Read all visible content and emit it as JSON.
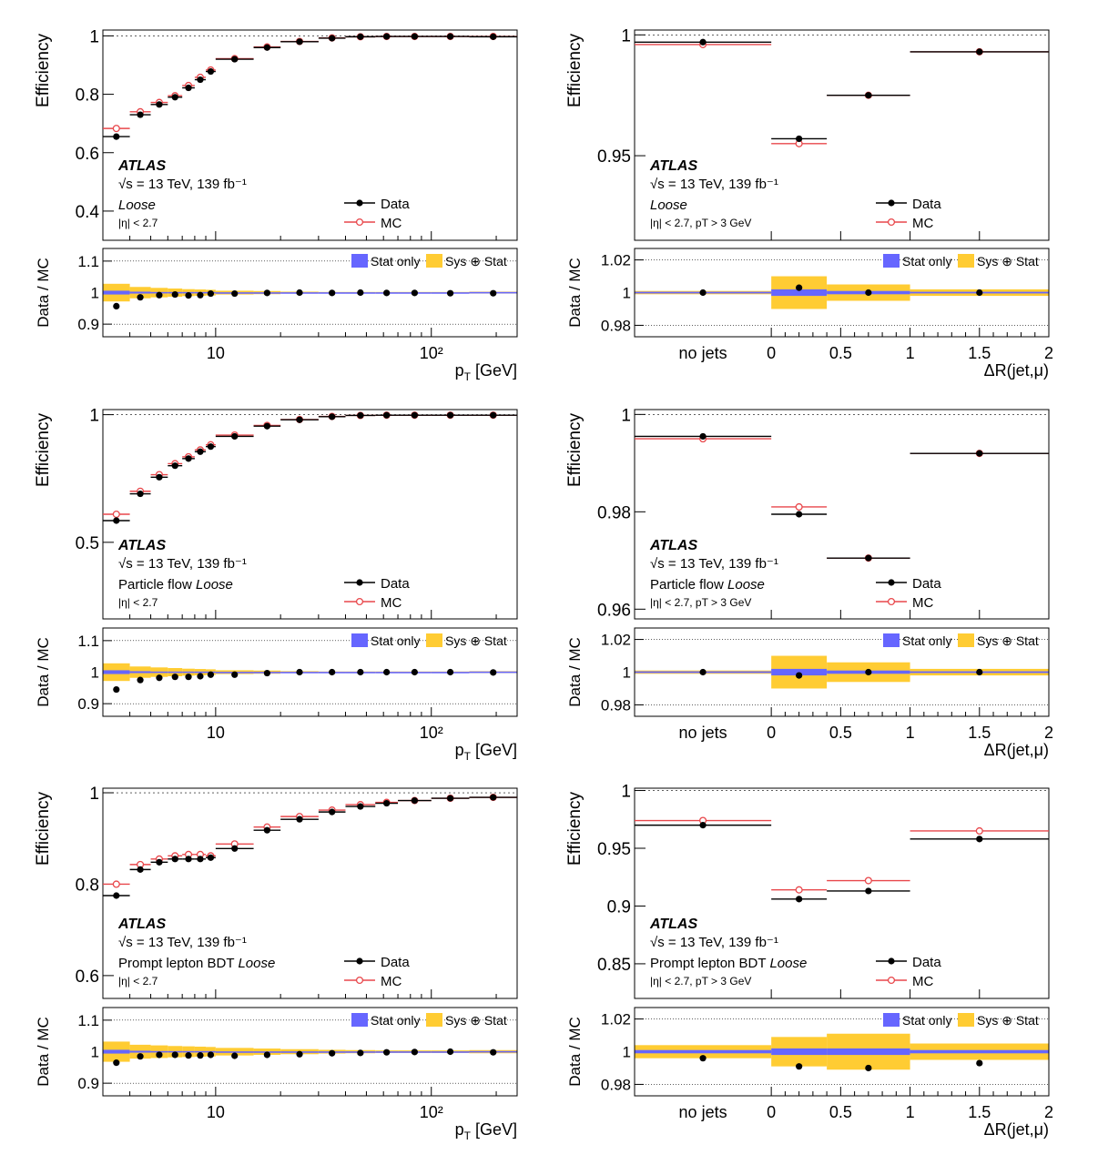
{
  "legend": {
    "data": "Data",
    "mc": "MC",
    "stat_only": "Stat only",
    "sys_stat": "Sys ⊕ Stat"
  },
  "atlas": {
    "label": "ATLAS",
    "energy": "√s = 13 TeV, 139 fb⁻¹"
  },
  "axes": {
    "efficiency": "Efficiency",
    "ratio": "Data / MC",
    "pt_label": "pT [GeV]",
    "pt_sub": "T",
    "dr_label": "ΔR(jet,μ)",
    "no_jets": "no jets",
    "pt_ticks": [
      {
        "v": 10,
        "label": "10"
      },
      {
        "v": 100,
        "label": "10²"
      }
    ],
    "dr_ticks": [
      "0",
      "0.5",
      "1",
      "1.5",
      "2"
    ]
  },
  "colors": {
    "data": "#000000",
    "mc": "#e8474b",
    "stat": "#6666ff",
    "sys": "#ffcc33"
  },
  "chart_data": [
    {
      "type": "scatter",
      "row": 0,
      "var": "pt",
      "xscale": "log",
      "xlim": [
        3,
        250
      ],
      "ylim": [
        0.3,
        1.02
      ],
      "yticks": [
        0.4,
        0.6,
        0.8,
        1
      ],
      "ratio_ylim": [
        0.86,
        1.14
      ],
      "ratio_yticks": [
        0.9,
        1,
        1.1
      ],
      "selection": "Loose",
      "selection_prefix": "",
      "cut": "|η| < 2.7",
      "bins": [
        [
          3,
          4
        ],
        [
          4,
          5
        ],
        [
          5,
          6
        ],
        [
          6,
          7
        ],
        [
          7,
          8
        ],
        [
          8,
          9
        ],
        [
          9,
          10
        ],
        [
          10,
          15
        ],
        [
          15,
          20
        ],
        [
          20,
          30
        ],
        [
          30,
          40
        ],
        [
          40,
          55
        ],
        [
          55,
          70
        ],
        [
          70,
          100
        ],
        [
          100,
          150
        ],
        [
          150,
          300
        ]
      ],
      "data": [
        0.655,
        0.73,
        0.765,
        0.79,
        0.822,
        0.85,
        0.878,
        0.92,
        0.96,
        0.98,
        0.992,
        0.997,
        0.998,
        0.998,
        0.998,
        0.997
      ],
      "mc": [
        0.683,
        0.74,
        0.772,
        0.795,
        0.83,
        0.858,
        0.883,
        0.922,
        0.962,
        0.981,
        0.993,
        0.997,
        0.998,
        0.998,
        0.998,
        0.998
      ],
      "ratio": [
        0.957,
        0.985,
        0.992,
        0.994,
        0.991,
        0.992,
        0.997,
        0.997,
        0.999,
        1.0,
        0.999,
        1.0,
        0.999,
        0.999,
        0.998,
        0.998
      ],
      "stat": [
        0.006,
        0.003,
        0.002,
        0.002,
        0.002,
        0.002,
        0.002,
        0.001,
        0.001,
        0.001,
        0.001,
        0.001,
        0.001,
        0.001,
        0.001,
        0.002
      ],
      "sys": [
        0.028,
        0.018,
        0.015,
        0.013,
        0.011,
        0.01,
        0.009,
        0.006,
        0.005,
        0.003,
        0.002,
        0.002,
        0.002,
        0.002,
        0.002,
        0.003
      ]
    },
    {
      "type": "scatter",
      "row": 0,
      "var": "dr",
      "xlim": [
        0,
        2
      ],
      "ylim": [
        0.915,
        1.002
      ],
      "yticks": [
        0.95,
        1
      ],
      "ratio_ylim": [
        0.973,
        1.027
      ],
      "ratio_yticks": [
        0.98,
        1,
        1.02
      ],
      "selection": "Loose",
      "selection_prefix": "",
      "cut": "|η| < 2.7, pT > 3 GeV",
      "bins": [
        [
          "nojets"
        ],
        [
          0,
          0.4
        ],
        [
          0.4,
          1
        ],
        [
          1,
          2
        ]
      ],
      "data": [
        0.997,
        0.957,
        0.975,
        0.993
      ],
      "mc": [
        0.996,
        0.955,
        0.975,
        0.993
      ],
      "ratio": [
        1.0,
        1.003,
        1.0,
        1.0
      ],
      "stat": [
        0.0005,
        0.002,
        0.001,
        0.0005
      ],
      "sys": [
        0.001,
        0.01,
        0.005,
        0.002
      ]
    },
    {
      "type": "scatter",
      "row": 1,
      "var": "pt",
      "xscale": "log",
      "xlim": [
        3,
        250
      ],
      "ylim": [
        0.2,
        1.02
      ],
      "yticks": [
        0.5,
        1
      ],
      "ratio_ylim": [
        0.86,
        1.14
      ],
      "ratio_yticks": [
        0.9,
        1,
        1.1
      ],
      "selection": "Loose",
      "selection_prefix": "Particle flow ",
      "cut": "|η| < 2.7",
      "bins": [
        [
          3,
          4
        ],
        [
          4,
          5
        ],
        [
          5,
          6
        ],
        [
          6,
          7
        ],
        [
          7,
          8
        ],
        [
          8,
          9
        ],
        [
          9,
          10
        ],
        [
          10,
          15
        ],
        [
          15,
          20
        ],
        [
          20,
          30
        ],
        [
          30,
          40
        ],
        [
          40,
          55
        ],
        [
          55,
          70
        ],
        [
          70,
          100
        ],
        [
          100,
          150
        ],
        [
          150,
          300
        ]
      ],
      "data": [
        0.585,
        0.69,
        0.755,
        0.8,
        0.828,
        0.855,
        0.875,
        0.915,
        0.955,
        0.98,
        0.992,
        0.997,
        0.998,
        0.998,
        0.998,
        0.998
      ],
      "mc": [
        0.61,
        0.7,
        0.765,
        0.808,
        0.835,
        0.862,
        0.882,
        0.92,
        0.958,
        0.981,
        0.993,
        0.997,
        0.998,
        0.998,
        0.998,
        0.998
      ],
      "ratio": [
        0.945,
        0.975,
        0.982,
        0.985,
        0.985,
        0.987,
        0.992,
        0.992,
        0.997,
        1.0,
        1.0,
        1.0,
        1.0,
        1.0,
        1.0,
        0.999
      ],
      "stat": [
        0.006,
        0.003,
        0.002,
        0.002,
        0.002,
        0.002,
        0.002,
        0.001,
        0.001,
        0.001,
        0.001,
        0.001,
        0.001,
        0.001,
        0.001,
        0.002
      ],
      "sys": [
        0.028,
        0.018,
        0.015,
        0.013,
        0.011,
        0.01,
        0.009,
        0.006,
        0.005,
        0.003,
        0.002,
        0.002,
        0.002,
        0.002,
        0.002,
        0.003
      ]
    },
    {
      "type": "scatter",
      "row": 1,
      "var": "dr",
      "xlim": [
        0,
        2
      ],
      "ylim": [
        0.958,
        1.001
      ],
      "yticks": [
        0.96,
        0.98,
        1
      ],
      "ratio_ylim": [
        0.973,
        1.027
      ],
      "ratio_yticks": [
        0.98,
        1,
        1.02
      ],
      "selection": "Loose",
      "selection_prefix": "Particle flow ",
      "cut": "|η| < 2.7, pT > 3 GeV",
      "bins": [
        [
          "nojets"
        ],
        [
          0,
          0.4
        ],
        [
          0.4,
          1
        ],
        [
          1,
          2
        ]
      ],
      "data": [
        0.9955,
        0.9795,
        0.9705,
        0.992
      ],
      "mc": [
        0.995,
        0.981,
        0.9705,
        0.992
      ],
      "ratio": [
        1.0,
        0.998,
        1.0,
        1.0
      ],
      "stat": [
        0.0005,
        0.002,
        0.001,
        0.0005
      ],
      "sys": [
        0.001,
        0.01,
        0.006,
        0.002
      ]
    },
    {
      "type": "scatter",
      "row": 2,
      "var": "pt",
      "xscale": "log",
      "xlim": [
        3,
        250
      ],
      "ylim": [
        0.55,
        1.01
      ],
      "yticks": [
        0.6,
        0.8,
        1
      ],
      "ratio_ylim": [
        0.86,
        1.14
      ],
      "ratio_yticks": [
        0.9,
        1,
        1.1
      ],
      "selection": "Loose",
      "selection_prefix": "Prompt lepton BDT ",
      "cut": "|η| < 2.7",
      "bins": [
        [
          3,
          4
        ],
        [
          4,
          5
        ],
        [
          5,
          6
        ],
        [
          6,
          7
        ],
        [
          7,
          8
        ],
        [
          8,
          9
        ],
        [
          9,
          10
        ],
        [
          10,
          15
        ],
        [
          15,
          20
        ],
        [
          20,
          30
        ],
        [
          30,
          40
        ],
        [
          40,
          55
        ],
        [
          55,
          70
        ],
        [
          70,
          100
        ],
        [
          100,
          150
        ],
        [
          150,
          300
        ]
      ],
      "data": [
        0.775,
        0.832,
        0.848,
        0.855,
        0.855,
        0.855,
        0.858,
        0.878,
        0.918,
        0.942,
        0.958,
        0.97,
        0.977,
        0.983,
        0.988,
        0.99
      ],
      "mc": [
        0.8,
        0.843,
        0.855,
        0.862,
        0.865,
        0.865,
        0.862,
        0.888,
        0.925,
        0.948,
        0.962,
        0.974,
        0.979,
        0.983,
        0.988,
        0.99
      ],
      "ratio": [
        0.965,
        0.985,
        0.99,
        0.99,
        0.988,
        0.988,
        0.99,
        0.987,
        0.99,
        0.992,
        0.995,
        0.996,
        0.998,
        0.999,
        1.0,
        0.998
      ],
      "stat": [
        0.006,
        0.003,
        0.002,
        0.002,
        0.002,
        0.002,
        0.002,
        0.001,
        0.001,
        0.001,
        0.001,
        0.001,
        0.001,
        0.001,
        0.001,
        0.002
      ],
      "sys": [
        0.032,
        0.022,
        0.02,
        0.018,
        0.017,
        0.016,
        0.015,
        0.012,
        0.01,
        0.008,
        0.006,
        0.005,
        0.004,
        0.004,
        0.004,
        0.005
      ]
    },
    {
      "type": "scatter",
      "row": 2,
      "var": "dr",
      "xlim": [
        0,
        2
      ],
      "ylim": [
        0.82,
        1.002
      ],
      "yticks": [
        0.85,
        0.9,
        0.95,
        1
      ],
      "ratio_ylim": [
        0.973,
        1.027
      ],
      "ratio_yticks": [
        0.98,
        1,
        1.02
      ],
      "selection": "Loose",
      "selection_prefix": "Prompt lepton BDT ",
      "cut": "|η| < 2.7, pT > 3 GeV",
      "bins": [
        [
          "nojets"
        ],
        [
          0,
          0.4
        ],
        [
          0.4,
          1
        ],
        [
          1,
          2
        ]
      ],
      "data": [
        0.97,
        0.906,
        0.913,
        0.958
      ],
      "mc": [
        0.974,
        0.914,
        0.922,
        0.965
      ],
      "ratio": [
        0.996,
        0.991,
        0.99,
        0.993
      ],
      "stat": [
        0.001,
        0.002,
        0.002,
        0.001
      ],
      "sys": [
        0.004,
        0.009,
        0.011,
        0.005
      ]
    }
  ]
}
